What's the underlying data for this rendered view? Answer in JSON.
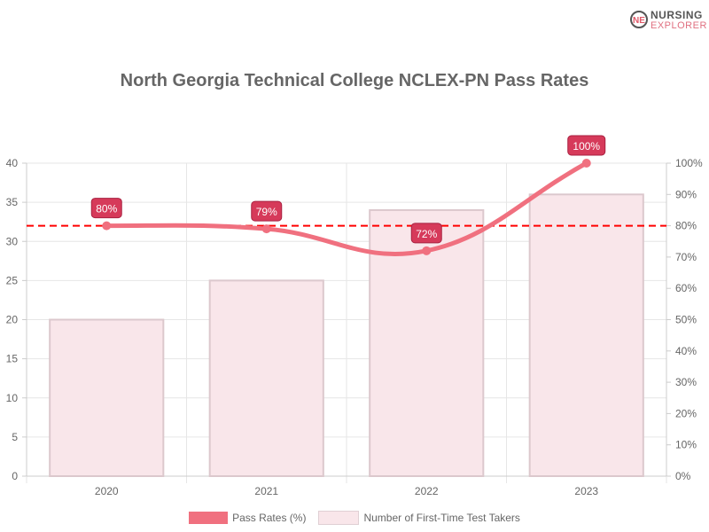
{
  "logo": {
    "line1": "NURSING",
    "line2": "EXPLORER"
  },
  "chart_data": {
    "type": "bar",
    "title": "North Georgia Technical College NCLEX-PN Pass Rates",
    "categories": [
      "2020",
      "2021",
      "2022",
      "2023"
    ],
    "series": [
      {
        "name": "Pass Rates (%)",
        "type": "line",
        "axis": "right",
        "values": [
          80,
          79,
          72,
          100
        ],
        "labels": [
          "80%",
          "79%",
          "72%",
          "100%"
        ],
        "color": "#f0707f"
      },
      {
        "name": "Number of First-Time Test Takers",
        "type": "bar",
        "axis": "left",
        "values": [
          20,
          25,
          34,
          36
        ],
        "color": "#f9e6ea"
      }
    ],
    "reference_line": {
      "value": 80,
      "axis": "right",
      "style": "dashed",
      "color": "#ff0000"
    },
    "ylim": [
      0,
      40
    ],
    "yticks": [
      "0",
      "5",
      "10",
      "15",
      "20",
      "25",
      "30",
      "35",
      "40"
    ],
    "y2lim": [
      0,
      100
    ],
    "y2ticks": [
      "0%",
      "10%",
      "20%",
      "30%",
      "40%",
      "50%",
      "60%",
      "70%",
      "80%",
      "90%",
      "100%"
    ],
    "grid": true,
    "legend": "bottom"
  }
}
